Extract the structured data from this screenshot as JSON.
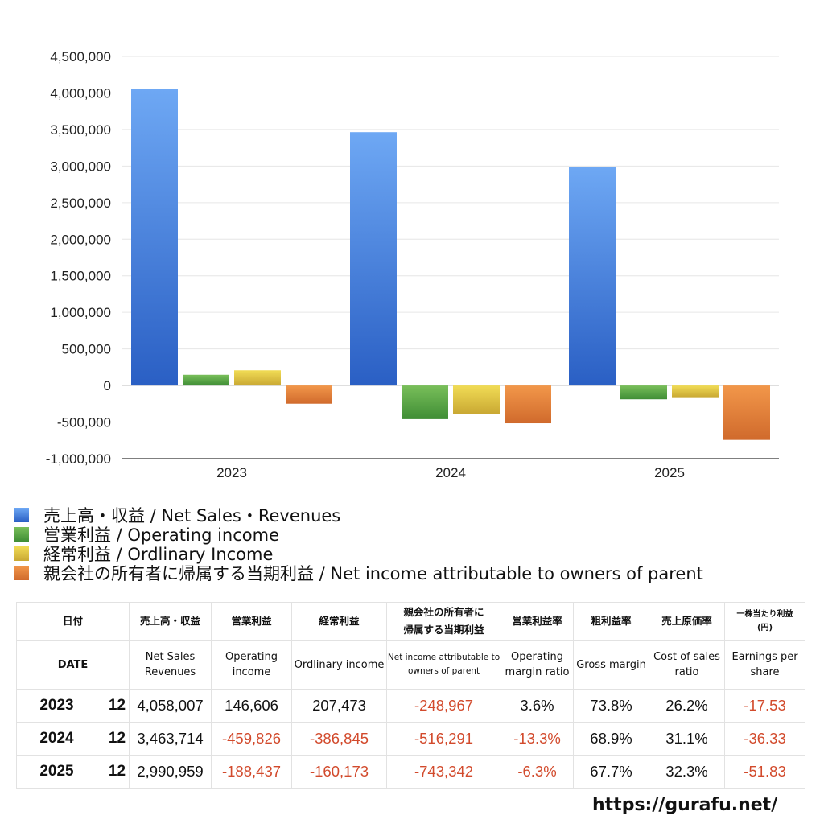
{
  "chart_data": {
    "type": "bar",
    "categories": [
      "2023",
      "2024",
      "2025"
    ],
    "ylim": [
      -1000000,
      4500000
    ],
    "yticks": [
      -1000000,
      -500000,
      0,
      500000,
      1000000,
      1500000,
      2000000,
      2500000,
      3000000,
      3500000,
      4000000,
      4500000
    ],
    "ytick_labels": [
      "-1,000,000",
      "-500,000",
      "0",
      "500,000",
      "1,000,000",
      "1,500,000",
      "2,000,000",
      "2,500,000",
      "3,000,000",
      "3,500,000",
      "4,000,000",
      "4,500,000"
    ],
    "grid": true,
    "legend_position": "bottom-left",
    "series": [
      {
        "name": "売上高・収益 / Net Sales・Revenues",
        "values": [
          4058007,
          3463714,
          2990959
        ],
        "color_top": "#6ea8f4",
        "color_bottom": "#2a5fc4"
      },
      {
        "name": "営業利益 / Operating income",
        "values": [
          146606,
          -459826,
          -188437
        ],
        "color_top": "#79bf5a",
        "color_bottom": "#3f8d35"
      },
      {
        "name": "経常利益 / Ordlinary Income",
        "values": [
          207473,
          -386845,
          -160173
        ],
        "color_top": "#f1dc55",
        "color_bottom": "#c9a833"
      },
      {
        "name": "親会社の所有者に帰属する当期利益 / Net income attributable to owners of parent",
        "values": [
          -248967,
          -516291,
          -743342
        ],
        "color_top": "#f2974a",
        "color_bottom": "#d06a2c"
      }
    ]
  },
  "table": {
    "headers_jp": [
      "日付",
      "売上高・収益",
      "営業利益",
      "経常利益",
      "親会社の所有者に\n帰属する当期利益",
      "営業利益率",
      "粗利益率",
      "売上原価率",
      "一株当たり利益\n(円)"
    ],
    "headers_en": [
      "DATE",
      "Net Sales\nRevenues",
      "Operating\nincome",
      "Ordlinary\nincome",
      "Net income attributable\nto owners of parent",
      "Operating\nmargin\nratio",
      "Gross\nmargin",
      "Cost of\nsales ratio",
      "Earnings\nper share"
    ],
    "rows": [
      {
        "year": "2023",
        "month": "12",
        "net_sales": "4,058,007",
        "operating_income": "146,606",
        "ordinary_income": "207,473",
        "net_income": "-248,967",
        "operating_margin": "3.6%",
        "gross_margin": "73.8%",
        "cost_ratio": "26.2%",
        "eps": "-17.53"
      },
      {
        "year": "2024",
        "month": "12",
        "net_sales": "3,463,714",
        "operating_income": "-459,826",
        "ordinary_income": "-386,845",
        "net_income": "-516,291",
        "operating_margin": "-13.3%",
        "gross_margin": "68.9%",
        "cost_ratio": "31.1%",
        "eps": "-36.33"
      },
      {
        "year": "2025",
        "month": "12",
        "net_sales": "2,990,959",
        "operating_income": "-188,437",
        "ordinary_income": "-160,173",
        "net_income": "-743,342",
        "operating_margin": "-6.3%",
        "gross_margin": "67.7%",
        "cost_ratio": "32.3%",
        "eps": "-51.83"
      }
    ]
  },
  "site": "https://gurafu.net/"
}
